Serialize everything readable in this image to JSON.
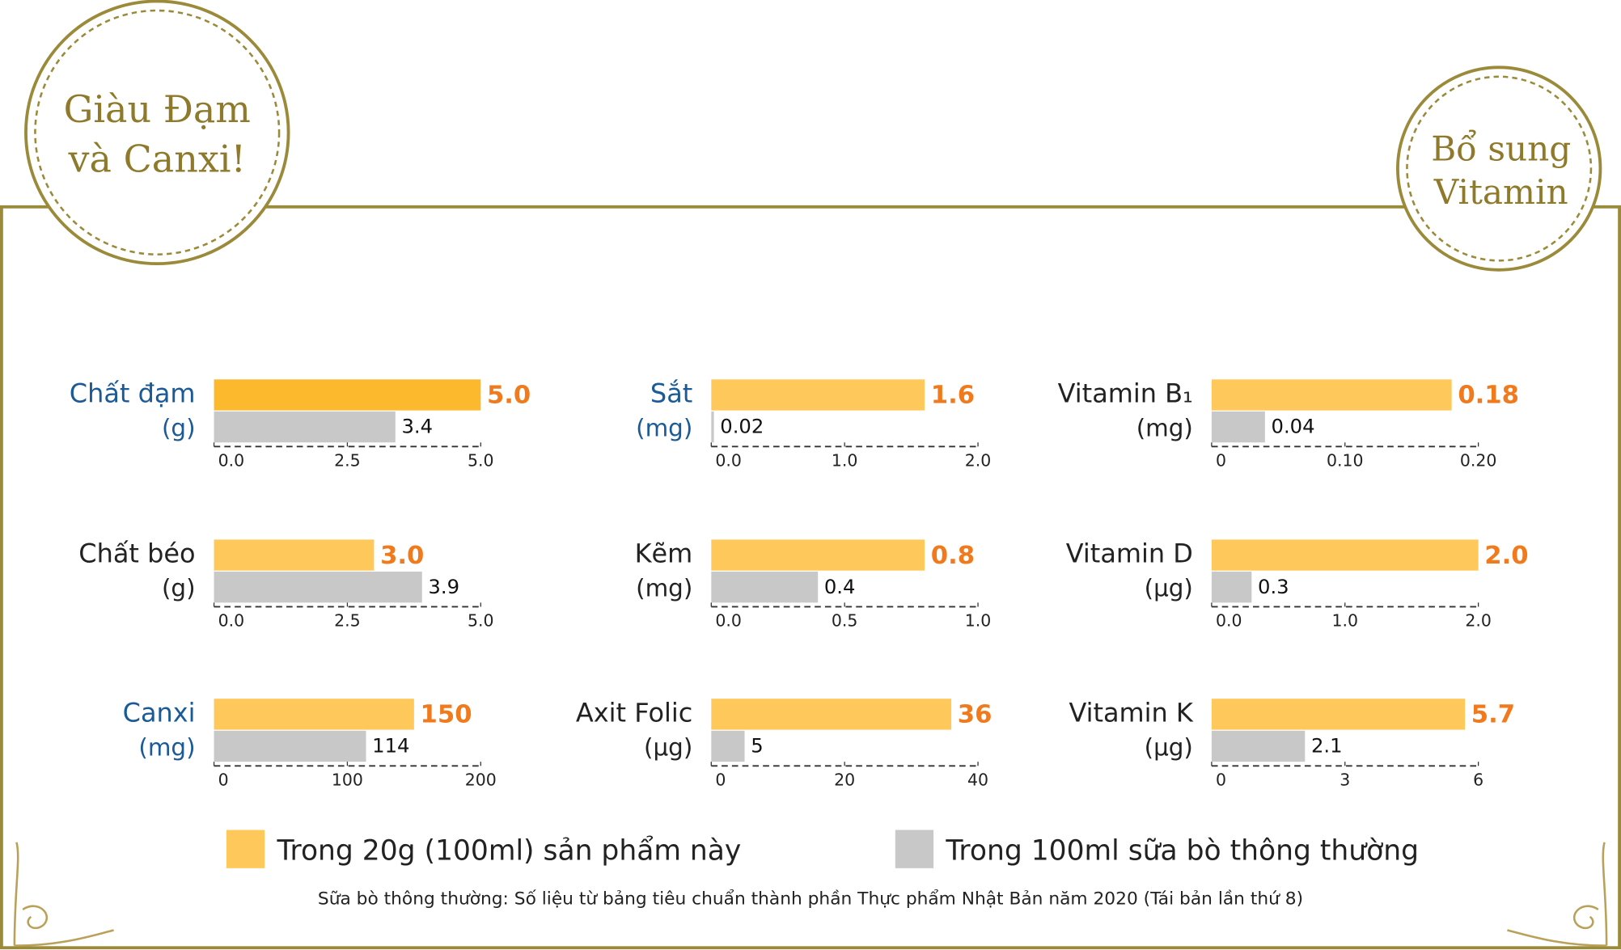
{
  "badges": [
    {
      "lines": [
        "Giàu Đạm",
        "và Canxi!"
      ]
    },
    {
      "lines": [
        "Bổ sung",
        "Vitamin"
      ]
    }
  ],
  "legend": [
    {
      "name": "Trong 20g (100ml) sản phẩm này",
      "color": "#ffc85a"
    },
    {
      "name": "Trong 100ml sữa bò thông thường",
      "color": "#c8c8c8"
    }
  ],
  "footnote": "Sữa bò thông thường: Số liệu từ bảng tiêu chuẩn thành phần Thực phẩm Nhật Bản năm 2020 (Tái bản lần thứ 8)",
  "chart_data": [
    {
      "type": "barh",
      "title": "Chất đạm",
      "unit": "(g)",
      "title_color": "#1a5a96",
      "values": [
        5.0,
        3.4
      ],
      "value_labels": [
        "5.0",
        "3.4"
      ],
      "colors": [
        "#fdb92e",
        "#c8c8c8"
      ],
      "xlim": [
        0,
        5
      ],
      "xticks": [
        {
          "value": 0,
          "label": "0.0"
        },
        2.5,
        {
          "value": 5,
          "label": "5.0"
        }
      ]
    },
    {
      "type": "barh",
      "title": "Sắt",
      "unit": "(mg)",
      "title_color": "#1a5a96",
      "values": [
        1.6,
        0.02
      ],
      "colors": [
        "#ffc85a",
        "#c8c8c8"
      ],
      "xlim": [
        0,
        2
      ],
      "xticks": [
        {
          "value": 0,
          "label": "0.0"
        },
        {
          "value": 1,
          "label": "1.0"
        },
        {
          "value": 2,
          "label": "2.0"
        }
      ]
    },
    {
      "type": "barh",
      "title": "Vitamin B₁",
      "unit": "(mg)",
      "title_color": "#222222",
      "values": [
        0.18,
        0.04
      ],
      "colors": [
        "#ffc85a",
        "#c8c8c8"
      ],
      "xlim": [
        0,
        0.2
      ],
      "xticks": [
        0,
        {
          "value": 0.1,
          "label": "0.10"
        },
        {
          "value": 0.2,
          "label": "0.20"
        }
      ]
    },
    {
      "type": "barh",
      "title": "Chất béo",
      "unit": "(g)",
      "title_color": "#222222",
      "values": [
        3.0,
        3.9
      ],
      "value_labels": [
        "3.0",
        "3.9"
      ],
      "colors": [
        "#ffc85a",
        "#c8c8c8"
      ],
      "xlim": [
        0,
        5
      ],
      "xticks": [
        {
          "value": 0,
          "label": "0.0"
        },
        2.5,
        {
          "value": 5,
          "label": "5.0"
        }
      ]
    },
    {
      "type": "barh",
      "title": "Kẽm",
      "unit": "(mg)",
      "title_color": "#222222",
      "values": [
        0.8,
        0.4
      ],
      "colors": [
        "#ffc85a",
        "#c8c8c8"
      ],
      "xlim": [
        0,
        1
      ],
      "xticks": [
        {
          "value": 0,
          "label": "0.0"
        },
        0.5,
        {
          "value": 1,
          "label": "1.0"
        }
      ]
    },
    {
      "type": "barh",
      "title": "Vitamin D",
      "unit": "(µg)",
      "title_color": "#222222",
      "values": [
        2.0,
        0.3
      ],
      "value_labels": [
        "2.0",
        "0.3"
      ],
      "colors": [
        "#ffc85a",
        "#c8c8c8"
      ],
      "xlim": [
        0,
        2
      ],
      "xticks": [
        {
          "value": 0,
          "label": "0.0"
        },
        {
          "value": 1,
          "label": "1.0"
        },
        {
          "value": 2,
          "label": "2.0"
        }
      ]
    },
    {
      "type": "barh",
      "title": "Canxi",
      "unit": "(mg)",
      "title_color": "#1a5a96",
      "values": [
        150,
        114
      ],
      "colors": [
        "#ffc85a",
        "#c8c8c8"
      ],
      "xlim": [
        0,
        200
      ],
      "xticks": [
        0,
        100,
        200
      ]
    },
    {
      "type": "barh",
      "title": "Axit Folic",
      "unit": "(µg)",
      "title_color": "#222222",
      "values": [
        36,
        5
      ],
      "colors": [
        "#ffc85a",
        "#c8c8c8"
      ],
      "xlim": [
        0,
        40
      ],
      "xticks": [
        0,
        20,
        40
      ]
    },
    {
      "type": "barh",
      "title": "Vitamin K",
      "unit": "(µg)",
      "title_color": "#222222",
      "values": [
        5.7,
        2.1
      ],
      "colors": [
        "#ffc85a",
        "#c8c8c8"
      ],
      "xlim": [
        0,
        6
      ],
      "xticks": [
        0,
        3,
        6
      ]
    }
  ]
}
